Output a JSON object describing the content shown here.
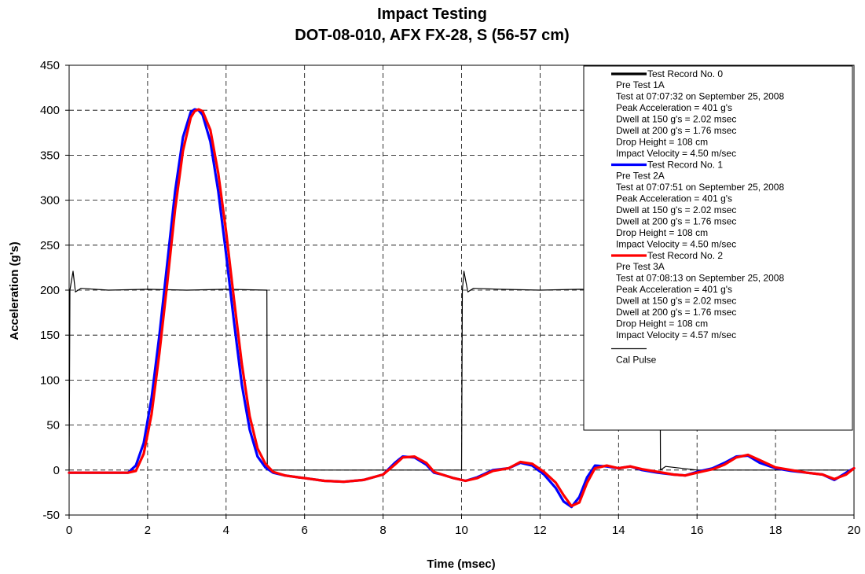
{
  "chart_data": {
    "type": "line",
    "title": "Impact Testing",
    "subtitle": "DOT-08-010, AFX FX-28, S (56-57 cm)",
    "xlabel": "Time (msec)",
    "ylabel": "Acceleration (g's)",
    "xlim": [
      0,
      20
    ],
    "ylim": [
      -50,
      450
    ],
    "x_ticks": [
      "0",
      "2",
      "4",
      "6",
      "8",
      "10",
      "12",
      "14",
      "16",
      "18",
      "20"
    ],
    "y_ticks": [
      "450",
      "400",
      "350",
      "300",
      "250",
      "200",
      "150",
      "100",
      "50",
      "0",
      "-50"
    ],
    "grid": true,
    "legend_position": "top-right",
    "series": [
      {
        "name": "Test Record No. 0",
        "color": "#000000",
        "details": [
          "Pre Test 1A",
          "Test at 07:07:32 on September 25, 2008",
          "Peak Acceleration = 401 g's",
          "Dwell at 150 g's = 2.02 msec",
          "Dwell at 200 g's = 1.76 msec",
          "Drop Height = 108 cm",
          "Impact Velocity = 4.50 m/sec"
        ]
      },
      {
        "name": "Test Record No. 1",
        "color": "#0000ff",
        "details": [
          "Pre Test 2A",
          "Test at 07:07:51 on September 25, 2008",
          "Peak Acceleration = 401 g's",
          "Dwell at 150 g's = 2.02 msec",
          "Dwell at 200 g's = 1.76 msec",
          "Drop Height = 108 cm",
          "Impact Velocity = 4.50 m/sec"
        ],
        "x": [
          0,
          0.5,
          1,
          1.5,
          1.7,
          1.9,
          2.1,
          2.3,
          2.5,
          2.7,
          2.9,
          3.1,
          3.2,
          3.3,
          3.4,
          3.6,
          3.8,
          4.0,
          4.2,
          4.4,
          4.6,
          4.8,
          5.0,
          5.2,
          5.5,
          6.0,
          6.5,
          7.0,
          7.5,
          8.0,
          8.3,
          8.5,
          8.8,
          9.1,
          9.3,
          9.5,
          9.8,
          10.1,
          10.4,
          10.8,
          11.2,
          11.5,
          11.8,
          12.1,
          12.4,
          12.6,
          12.8,
          13.0,
          13.2,
          13.4,
          13.7,
          14.0,
          14.3,
          14.6,
          15.0,
          15.4,
          15.7,
          16.0,
          16.4,
          16.7,
          17.0,
          17.3,
          17.6,
          18.0,
          18.4,
          18.8,
          19.2,
          19.5,
          19.8,
          20.0
        ],
        "y": [
          -3,
          -3,
          -3,
          -3,
          5,
          30,
          80,
          150,
          230,
          310,
          370,
          398,
          401,
          400,
          395,
          365,
          310,
          240,
          165,
          95,
          45,
          15,
          3,
          -3,
          -6,
          -9,
          -12,
          -13,
          -11,
          -5,
          8,
          15,
          14,
          6,
          -3,
          -5,
          -9,
          -12,
          -8,
          0,
          2,
          8,
          5,
          -5,
          -20,
          -35,
          -41,
          -30,
          -8,
          5,
          4,
          2,
          4,
          0,
          -3,
          -5,
          -6,
          -2,
          2,
          8,
          15,
          16,
          8,
          2,
          -1,
          -3,
          -5,
          -11,
          -3,
          2
        ]
      },
      {
        "name": "Test Record No. 2",
        "color": "#ff0000",
        "details": [
          "Pre Test 3A",
          "Test at 07:08:13 on September 25, 2008",
          "Peak Acceleration = 401 g's",
          "Dwell at 150 g's = 2.02 msec",
          "Dwell at 200 g's = 1.76 msec",
          "Drop Height = 108 cm",
          "Impact Velocity = 4.57 m/sec"
        ],
        "x": [
          0,
          0.5,
          1,
          1.5,
          1.7,
          1.9,
          2.1,
          2.3,
          2.5,
          2.7,
          2.9,
          3.1,
          3.2,
          3.3,
          3.4,
          3.6,
          3.8,
          4.0,
          4.2,
          4.4,
          4.6,
          4.8,
          5.0,
          5.2,
          5.5,
          6.0,
          6.5,
          7.0,
          7.5,
          8.0,
          8.3,
          8.5,
          8.8,
          9.1,
          9.3,
          9.5,
          9.8,
          10.1,
          10.4,
          10.8,
          11.2,
          11.5,
          11.8,
          12.1,
          12.4,
          12.6,
          12.8,
          13.0,
          13.2,
          13.4,
          13.7,
          14.0,
          14.3,
          14.6,
          15.0,
          15.4,
          15.7,
          16.0,
          16.4,
          16.7,
          17.0,
          17.3,
          17.6,
          18.0,
          18.4,
          18.8,
          19.2,
          19.5,
          19.8,
          20.0
        ],
        "y": [
          -3,
          -3,
          -3,
          -3,
          -1,
          18,
          62,
          130,
          208,
          290,
          355,
          392,
          399,
          401,
          399,
          378,
          330,
          265,
          190,
          118,
          60,
          24,
          7,
          -2,
          -6,
          -9,
          -12,
          -13,
          -11,
          -5,
          6,
          14,
          15,
          8,
          -2,
          -5,
          -9,
          -12,
          -9,
          -1,
          2,
          9,
          7,
          -2,
          -14,
          -28,
          -40,
          -36,
          -14,
          2,
          5,
          2,
          4,
          1,
          -2,
          -5,
          -6,
          -3,
          1,
          6,
          14,
          17,
          11,
          3,
          0,
          -3,
          -5,
          -10,
          -5,
          2
        ]
      },
      {
        "name": "Cal Pulse",
        "color": "#000000",
        "x": [
          0,
          0.02,
          0.1,
          0.16,
          0.3,
          1,
          2,
          3,
          4,
          5.04,
          5.05,
          5.3,
          10.0,
          10.02,
          10.06,
          10.16,
          10.3,
          11,
          12,
          13,
          14,
          15.05,
          15.07,
          15.2,
          16,
          17,
          18,
          19,
          20
        ],
        "y": [
          0,
          200,
          221,
          198,
          202,
          200,
          201,
          200,
          201,
          200,
          0,
          0,
          0,
          200,
          221,
          198,
          202,
          201,
          200,
          201,
          200,
          200,
          0,
          4,
          0,
          0,
          0,
          0,
          0
        ]
      }
    ]
  }
}
